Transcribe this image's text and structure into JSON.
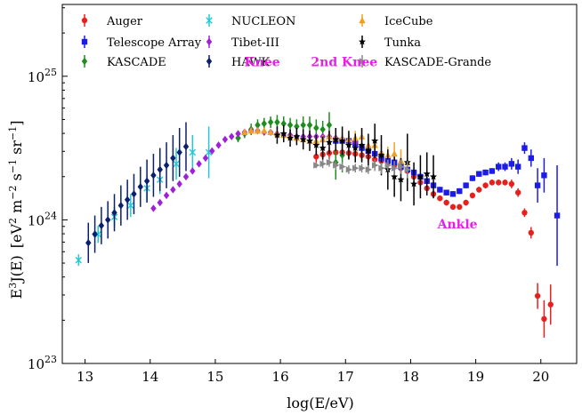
{
  "chart_data": {
    "type": "scatter",
    "xlabel": "log(E/eV)",
    "ylabel": "E^3 J(E)  [eV^2 m^-2 s^-1 sr^-1]",
    "ylabel_parts": {
      "prefix": "E",
      "prefix_sup": "3",
      "fn": "J(E)",
      "unit_open": "[eV",
      "e1": "2",
      "m": " m",
      "e2": "−2",
      "s": " s",
      "e3": "−1",
      "sr": " sr",
      "e4": "−1",
      "unit_close": "]"
    },
    "xlim": [
      12.65,
      20.55
    ],
    "ylim_exponents": [
      23,
      25.5
    ],
    "x_ticks": [
      "13",
      "14",
      "15",
      "16",
      "17",
      "18",
      "19",
      "20"
    ],
    "y_ticks": [
      {
        "base": "10",
        "exp": "23"
      },
      {
        "base": "10",
        "exp": "24"
      },
      {
        "base": "10",
        "exp": "25"
      }
    ],
    "log_y": true,
    "grid": false,
    "legend_position": "top",
    "annotations": [
      {
        "text": "Knee",
        "x": 15.72,
        "y_log": 25.07,
        "color": "#e81ee8"
      },
      {
        "text": "2nd Knee",
        "x": 16.98,
        "y_log": 25.07,
        "color": "#e81ee8"
      },
      {
        "text": "Ankle",
        "x": 18.72,
        "y_log": 23.94,
        "color": "#e81ee8"
      }
    ],
    "series": [
      {
        "name": "Auger",
        "color": "#e8201c",
        "marker": "circle",
        "points": [
          [
            16.55,
            24.44,
            0.04
          ],
          [
            16.65,
            24.455,
            0.04
          ],
          [
            16.75,
            24.465,
            0.04
          ],
          [
            16.85,
            24.47,
            0.04
          ],
          [
            16.95,
            24.47,
            0.04
          ],
          [
            17.05,
            24.465,
            0.04
          ],
          [
            17.15,
            24.46,
            0.04
          ],
          [
            17.25,
            24.45,
            0.04
          ],
          [
            17.35,
            24.44,
            0.04
          ],
          [
            17.45,
            24.42,
            0.03
          ],
          [
            17.55,
            24.41,
            0.03
          ],
          [
            17.65,
            24.4,
            0.03
          ],
          [
            17.75,
            24.38,
            0.03
          ],
          [
            17.85,
            24.36,
            0.03
          ],
          [
            17.95,
            24.34,
            0.03
          ],
          [
            18.05,
            24.3,
            0.02
          ],
          [
            18.15,
            24.26,
            0.02
          ],
          [
            18.25,
            24.22,
            0.02
          ],
          [
            18.35,
            24.18,
            0.02
          ],
          [
            18.45,
            24.15,
            0.02
          ],
          [
            18.55,
            24.12,
            0.02
          ],
          [
            18.65,
            24.09,
            0.02
          ],
          [
            18.75,
            24.09,
            0.02
          ],
          [
            18.85,
            24.12,
            0.02
          ],
          [
            18.95,
            24.17,
            0.02
          ],
          [
            19.05,
            24.21,
            0.02
          ],
          [
            19.15,
            24.24,
            0.02
          ],
          [
            19.25,
            24.26,
            0.02
          ],
          [
            19.35,
            24.26,
            0.02
          ],
          [
            19.45,
            24.26,
            0.02
          ],
          [
            19.55,
            24.25,
            0.03
          ],
          [
            19.65,
            24.19,
            0.03
          ],
          [
            19.75,
            24.05,
            0.03
          ],
          [
            19.85,
            23.91,
            0.04
          ],
          [
            19.95,
            23.47,
            0.09
          ],
          [
            20.05,
            23.31,
            0.13
          ],
          [
            20.15,
            23.41,
            0.14
          ]
        ]
      },
      {
        "name": "Telescope Array",
        "color": "#1c1ce8",
        "marker": "square",
        "points": [
          [
            16.85,
            24.55,
            0.03
          ],
          [
            16.95,
            24.55,
            0.03
          ],
          [
            17.05,
            24.55,
            0.03
          ],
          [
            17.15,
            24.53,
            0.03
          ],
          [
            17.25,
            24.5,
            0.03
          ],
          [
            17.35,
            24.48,
            0.03
          ],
          [
            17.45,
            24.46,
            0.03
          ],
          [
            17.55,
            24.43,
            0.03
          ],
          [
            17.65,
            24.41,
            0.03
          ],
          [
            17.75,
            24.4,
            0.02
          ],
          [
            17.85,
            24.37,
            0.02
          ],
          [
            17.95,
            24.35,
            0.02
          ],
          [
            18.05,
            24.33,
            0.02
          ],
          [
            18.15,
            24.3,
            0.02
          ],
          [
            18.25,
            24.27,
            0.02
          ],
          [
            18.35,
            24.24,
            0.02
          ],
          [
            18.45,
            24.21,
            0.02
          ],
          [
            18.55,
            24.19,
            0.02
          ],
          [
            18.65,
            24.18,
            0.02
          ],
          [
            18.75,
            24.2,
            0.02
          ],
          [
            18.85,
            24.24,
            0.02
          ],
          [
            18.95,
            24.29,
            0.02
          ],
          [
            19.05,
            24.32,
            0.02
          ],
          [
            19.15,
            24.33,
            0.02
          ],
          [
            19.25,
            24.34,
            0.02
          ],
          [
            19.35,
            24.37,
            0.03
          ],
          [
            19.45,
            24.37,
            0.03
          ],
          [
            19.55,
            24.39,
            0.04
          ],
          [
            19.65,
            24.37,
            0.05
          ],
          [
            19.75,
            24.5,
            0.04
          ],
          [
            19.85,
            24.43,
            0.06
          ],
          [
            19.95,
            24.24,
            0.12
          ],
          [
            20.05,
            24.31,
            0.12
          ],
          [
            20.25,
            24.03,
            0.35
          ]
        ]
      },
      {
        "name": "KASCADE",
        "color": "#1e8c1e",
        "marker": "diamond",
        "points": [
          [
            15.35,
            24.57,
            0.03
          ],
          [
            15.45,
            24.6,
            0.03
          ],
          [
            15.55,
            24.63,
            0.04
          ],
          [
            15.65,
            24.66,
            0.04
          ],
          [
            15.75,
            24.67,
            0.04
          ],
          [
            15.85,
            24.68,
            0.04
          ],
          [
            15.95,
            24.68,
            0.05
          ],
          [
            16.05,
            24.67,
            0.05
          ],
          [
            16.15,
            24.66,
            0.05
          ],
          [
            16.25,
            24.65,
            0.05
          ],
          [
            16.35,
            24.66,
            0.06
          ],
          [
            16.45,
            24.66,
            0.06
          ],
          [
            16.55,
            24.64,
            0.06
          ],
          [
            16.65,
            24.63,
            0.06
          ],
          [
            16.75,
            24.66,
            0.09
          ],
          [
            16.85,
            24.4,
            0.12
          ],
          [
            16.95,
            24.45,
            0.12
          ]
        ]
      },
      {
        "name": "NUCLEON",
        "color": "#22c8d4",
        "marker": "xcross",
        "points": [
          [
            12.9,
            23.72,
            0.04
          ],
          [
            13.2,
            23.9,
            0.06
          ],
          [
            13.45,
            24.02,
            0.07
          ],
          [
            13.7,
            24.1,
            0.08
          ],
          [
            13.95,
            24.22,
            0.09
          ],
          [
            14.15,
            24.28,
            0.1
          ],
          [
            14.4,
            24.39,
            0.11
          ],
          [
            14.65,
            24.47,
            0.12
          ],
          [
            14.9,
            24.47,
            0.18
          ]
        ]
      },
      {
        "name": "Tibet-III",
        "color": "#a020d8",
        "marker": "diamond",
        "points": [
          [
            14.05,
            24.08,
            0.02
          ],
          [
            14.15,
            24.12,
            0.02
          ],
          [
            14.25,
            24.17,
            0.02
          ],
          [
            14.35,
            24.21,
            0.02
          ],
          [
            14.45,
            24.25,
            0.02
          ],
          [
            14.55,
            24.3,
            0.02
          ],
          [
            14.65,
            24.34,
            0.02
          ],
          [
            14.75,
            24.39,
            0.02
          ],
          [
            14.85,
            24.43,
            0.02
          ],
          [
            14.95,
            24.48,
            0.02
          ],
          [
            15.05,
            24.52,
            0.02
          ],
          [
            15.15,
            24.56,
            0.02
          ],
          [
            15.25,
            24.58,
            0.02
          ],
          [
            15.35,
            24.6,
            0.02
          ],
          [
            15.45,
            24.61,
            0.02
          ],
          [
            15.55,
            24.62,
            0.02
          ],
          [
            15.65,
            24.62,
            0.02
          ],
          [
            15.75,
            24.61,
            0.02
          ],
          [
            15.85,
            24.61,
            0.02
          ],
          [
            15.95,
            24.6,
            0.02
          ],
          [
            16.05,
            24.59,
            0.02
          ],
          [
            16.15,
            24.59,
            0.02
          ],
          [
            16.25,
            24.58,
            0.02
          ],
          [
            16.35,
            24.58,
            0.02
          ],
          [
            16.45,
            24.58,
            0.02
          ],
          [
            16.55,
            24.58,
            0.02
          ],
          [
            16.65,
            24.58,
            0.02
          ],
          [
            16.75,
            24.58,
            0.02
          ],
          [
            16.85,
            24.57,
            0.02
          ],
          [
            16.95,
            24.56,
            0.02
          ],
          [
            17.05,
            24.55,
            0.02
          ],
          [
            17.15,
            24.54,
            0.02
          ]
        ]
      },
      {
        "name": "HAWK",
        "color": "#0c1e6e",
        "marker": "diamond",
        "points": [
          [
            13.05,
            23.84,
            0.14
          ],
          [
            13.15,
            23.9,
            0.13
          ],
          [
            13.25,
            23.96,
            0.13
          ],
          [
            13.35,
            24.0,
            0.13
          ],
          [
            13.45,
            24.05,
            0.13
          ],
          [
            13.55,
            24.1,
            0.14
          ],
          [
            13.65,
            24.14,
            0.14
          ],
          [
            13.75,
            24.18,
            0.14
          ],
          [
            13.85,
            24.23,
            0.14
          ],
          [
            13.95,
            24.27,
            0.15
          ],
          [
            14.05,
            24.31,
            0.15
          ],
          [
            14.15,
            24.35,
            0.15
          ],
          [
            14.25,
            24.38,
            0.16
          ],
          [
            14.35,
            24.43,
            0.16
          ],
          [
            14.45,
            24.47,
            0.17
          ],
          [
            14.55,
            24.51,
            0.17
          ]
        ]
      },
      {
        "name": "IceCube",
        "color": "#f0a020",
        "marker": "triangle-up",
        "points": [
          [
            15.45,
            24.61,
            0.02
          ],
          [
            15.55,
            24.62,
            0.02
          ],
          [
            15.65,
            24.62,
            0.02
          ],
          [
            15.75,
            24.62,
            0.02
          ],
          [
            15.85,
            24.61,
            0.02
          ],
          [
            15.95,
            24.6,
            0.02
          ],
          [
            16.05,
            24.59,
            0.02
          ],
          [
            16.15,
            24.58,
            0.02
          ],
          [
            16.25,
            24.57,
            0.02
          ],
          [
            16.35,
            24.56,
            0.02
          ],
          [
            16.45,
            24.55,
            0.02
          ],
          [
            16.55,
            24.55,
            0.03
          ],
          [
            16.65,
            24.56,
            0.03
          ],
          [
            16.75,
            24.58,
            0.03
          ],
          [
            16.85,
            24.57,
            0.03
          ],
          [
            16.95,
            24.57,
            0.04
          ],
          [
            17.05,
            24.56,
            0.04
          ],
          [
            17.15,
            24.57,
            0.05
          ],
          [
            17.25,
            24.58,
            0.05
          ],
          [
            17.35,
            24.52,
            0.06
          ],
          [
            17.45,
            24.52,
            0.06
          ],
          [
            17.55,
            24.47,
            0.06
          ],
          [
            17.65,
            24.45,
            0.06
          ],
          [
            17.75,
            24.46,
            0.08
          ],
          [
            17.85,
            24.41,
            0.08
          ],
          [
            17.95,
            24.4,
            0.1
          ]
        ]
      },
      {
        "name": "Tunka",
        "color": "#000000",
        "marker": "star",
        "points": [
          [
            15.95,
            24.59,
            0.06
          ],
          [
            16.05,
            24.6,
            0.06
          ],
          [
            16.15,
            24.57,
            0.06
          ],
          [
            16.25,
            24.58,
            0.06
          ],
          [
            16.35,
            24.56,
            0.07
          ],
          [
            16.45,
            24.55,
            0.07
          ],
          [
            16.55,
            24.52,
            0.07
          ],
          [
            16.65,
            24.5,
            0.08
          ],
          [
            16.75,
            24.54,
            0.08
          ],
          [
            16.85,
            24.56,
            0.08
          ],
          [
            16.95,
            24.55,
            0.1
          ],
          [
            17.05,
            24.52,
            0.1
          ],
          [
            17.15,
            24.5,
            0.1
          ],
          [
            17.25,
            24.52,
            0.12
          ],
          [
            17.35,
            24.48,
            0.12
          ],
          [
            17.45,
            24.55,
            0.12
          ],
          [
            17.55,
            24.45,
            0.14
          ],
          [
            17.65,
            24.35,
            0.14
          ],
          [
            17.75,
            24.3,
            0.14
          ],
          [
            17.85,
            24.28,
            0.15
          ],
          [
            17.95,
            24.4,
            0.2
          ],
          [
            18.05,
            24.25,
            0.15
          ],
          [
            18.15,
            24.3,
            0.15
          ],
          [
            18.25,
            24.32,
            0.15
          ],
          [
            18.35,
            24.3,
            0.15
          ]
        ]
      },
      {
        "name": "KASCADE-Grande",
        "color": "#888888",
        "marker": "triangle-right",
        "points": [
          [
            16.55,
            24.38,
            0.02
          ],
          [
            16.65,
            24.39,
            0.03
          ],
          [
            16.75,
            24.4,
            0.03
          ],
          [
            16.85,
            24.38,
            0.03
          ],
          [
            16.95,
            24.37,
            0.03
          ],
          [
            17.05,
            24.35,
            0.03
          ],
          [
            17.15,
            24.36,
            0.03
          ],
          [
            17.25,
            24.36,
            0.03
          ],
          [
            17.35,
            24.35,
            0.03
          ],
          [
            17.45,
            24.38,
            0.04
          ],
          [
            17.55,
            24.36,
            0.04
          ],
          [
            17.65,
            24.38,
            0.04
          ],
          [
            17.75,
            24.36,
            0.05
          ],
          [
            17.85,
            24.37,
            0.05
          ],
          [
            17.95,
            24.35,
            0.06
          ]
        ]
      }
    ]
  }
}
